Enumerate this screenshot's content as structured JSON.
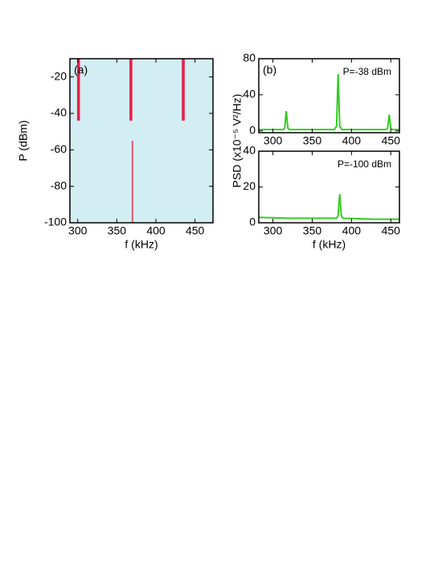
{
  "chart_data": [
    {
      "type": "heatmap",
      "xlabel": "f (kHz)",
      "ylabel": "P (dBm)",
      "annotation": "(a)",
      "xlim": [
        290,
        473
      ],
      "ylim": [
        -100,
        -10
      ],
      "xticks": [
        300,
        350,
        400,
        450
      ],
      "yticks": [
        -20,
        -40,
        -60,
        -80,
        -100
      ],
      "background": "#d3eef3",
      "color": "#e8204a",
      "peaks": [
        {
          "f": 301,
          "p_min": -44,
          "p_max": -10
        },
        {
          "f": 368,
          "p_min": -44,
          "p_max": -10
        },
        {
          "f": 435,
          "p_min": -44,
          "p_max": -10
        },
        {
          "f": 370,
          "p_min": -100,
          "p_max": -55
        }
      ]
    },
    {
      "type": "line",
      "ylabel": "PSD (x10⁻⁵ V²/Hz)",
      "annotation": "(b)",
      "subtitle": "P=-38 dBm",
      "xlim": [
        282,
        461
      ],
      "ylim": [
        -2,
        80
      ],
      "xticks": [
        300,
        350,
        400,
        450
      ],
      "yticks": [
        0,
        40,
        80
      ],
      "x": [
        282,
        300,
        313,
        315,
        317,
        319,
        321,
        360,
        378,
        381,
        383,
        385,
        388,
        420,
        444,
        446,
        448,
        450,
        452,
        461
      ],
      "series": [
        {
          "name": "P=-38 dBm",
          "color": "#33cc22",
          "values": [
            1.5,
            1.5,
            1.5,
            3,
            22,
            3,
            1.5,
            1.5,
            1.5,
            5,
            63,
            5,
            1.5,
            1.5,
            1.5,
            3,
            18,
            3,
            1.5,
            1.5
          ]
        }
      ]
    },
    {
      "type": "line",
      "xlabel": "f (kHz)",
      "subtitle": "P=-100 dBm",
      "xlim": [
        282,
        461
      ],
      "ylim": [
        0,
        40
      ],
      "xticks": [
        300,
        350,
        400,
        450
      ],
      "yticks": [
        0,
        20,
        40
      ],
      "x": [
        282,
        320,
        360,
        381,
        383,
        385,
        387,
        389,
        430,
        461
      ],
      "series": [
        {
          "name": "P=-100 dBm",
          "color": "#33cc22",
          "values": [
            3,
            2.5,
            2.5,
            2.5,
            4,
            16,
            4,
            2.5,
            2,
            2
          ]
        }
      ]
    }
  ]
}
